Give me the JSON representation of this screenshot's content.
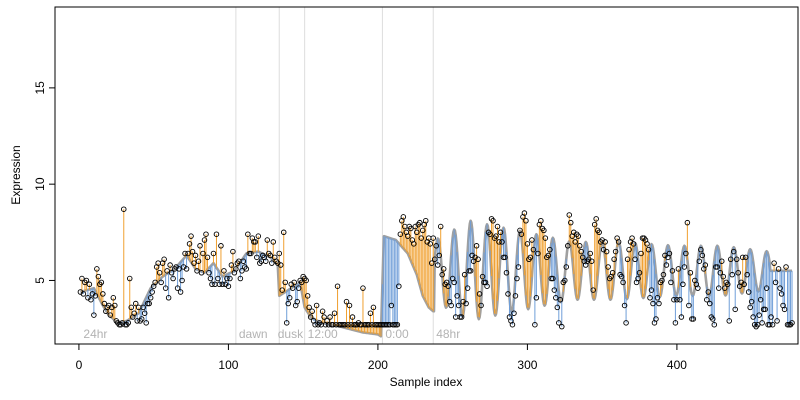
{
  "chart_data": {
    "type": "scatter",
    "title": "",
    "xlabel": "Sample index",
    "ylabel": "Expression",
    "xlim": [
      -16,
      481
    ],
    "ylim": [
      1.7,
      19.2
    ],
    "x_ticks": [
      0,
      100,
      200,
      300,
      400
    ],
    "y_ticks": [
      5,
      10,
      15
    ],
    "grid": false,
    "legend": "none",
    "region_boundaries": [
      105,
      134,
      151,
      203,
      237
    ],
    "region_labels": [
      {
        "text": "24hr",
        "x": 3
      },
      {
        "text": "dawn",
        "x": 107
      },
      {
        "text": "dusk",
        "x": 133
      },
      {
        "text": "12:00",
        "x": 153
      },
      {
        "text": "0:00",
        "x": 205
      },
      {
        "text": "48hr",
        "x": 239
      }
    ],
    "colors": {
      "fitted": "#a0a0a0",
      "residual_above": "#f0a030",
      "residual_below": "#6f9ed8",
      "points": "#000000",
      "boundary": "#dddddd",
      "region_label": "#b3b3b3"
    },
    "series": [
      {
        "x_start": 1,
        "fitted_anchors": [
          [
            1,
            4.4
          ],
          [
            10,
            4.6
          ],
          [
            16,
            3.7
          ],
          [
            20,
            3.2
          ],
          [
            26,
            2.8
          ],
          [
            32,
            2.9
          ],
          [
            40,
            3.3
          ],
          [
            48,
            4.6
          ],
          [
            56,
            5.2
          ],
          [
            64,
            5.6
          ],
          [
            72,
            6.3
          ],
          [
            78,
            5.6
          ],
          [
            84,
            5.4
          ],
          [
            90,
            5.9
          ],
          [
            96,
            5.2
          ],
          [
            104,
            5.5
          ],
          [
            112,
            6.4
          ],
          [
            120,
            6.5
          ],
          [
            128,
            6.2
          ],
          [
            133,
            5.8
          ],
          [
            134,
            4.2
          ],
          [
            142,
            4.6
          ],
          [
            148,
            4.9
          ],
          [
            151,
            3.6
          ],
          [
            155,
            3.1
          ],
          [
            162,
            2.8
          ],
          [
            175,
            2.6
          ],
          [
            190,
            2.3
          ],
          [
            200,
            2.2
          ],
          [
            202,
            2.1
          ],
          [
            203,
            4.8
          ],
          [
            204,
            7.3
          ],
          [
            212,
            7.1
          ],
          [
            220,
            6.4
          ],
          [
            226,
            5.3
          ],
          [
            230,
            4.2
          ],
          [
            234,
            3.6
          ],
          [
            237,
            3.4
          ]
        ],
        "osc": {
          "x0": 238,
          "x1": 462,
          "mean": 5.5,
          "amp_anchors": [
            [
              238,
              1.6
            ],
            [
              262,
              2.6
            ],
            [
              280,
              2.3
            ],
            [
              300,
              2.0
            ],
            [
              330,
              1.5
            ],
            [
              360,
              1.5
            ],
            [
              400,
              1.3
            ],
            [
              430,
              1.3
            ],
            [
              462,
              1.0
            ]
          ],
          "period": 11,
          "phase": 0.4
        },
        "points": [
          4.4,
          5.1,
          4.3,
          4.9,
          5.0,
          4.1,
          4.8,
          4.0,
          4.3,
          3.2,
          4.2,
          5.6,
          5.2,
          4.8,
          4.9,
          4.3,
          3.8,
          3.4,
          3.6,
          3.7,
          3.2,
          3.6,
          4.1,
          3.7,
          2.9,
          2.8,
          2.7,
          2.7,
          2.8,
          8.7,
          2.7,
          2.7,
          2.8,
          5.1,
          3.6,
          3.1,
          3.3,
          3.8,
          2.9,
          3.6,
          2.9,
          3.0,
          3.6,
          3.3,
          2.8,
          3.8,
          3.8,
          4.1,
          4.4,
          4.7,
          4.9,
          5.7,
          5.9,
          5.4,
          4.9,
          5.9,
          6.1,
          4.6,
          5.5,
          4.1,
          5.8,
          5.4,
          5.1,
          5.6,
          5.7,
          4.6,
          5.6,
          4.4,
          5.0,
          5.7,
          6.4,
          5.6,
          6.4,
          6.9,
          7.3,
          6.5,
          5.9,
          6.3,
          5.5,
          6.0,
          6.8,
          5.4,
          6.4,
          7.1,
          7.4,
          6.2,
          5.4,
          5.1,
          4.8,
          6.4,
          4.8,
          7.4,
          5.1,
          4.8,
          6.8,
          4.8,
          5.5,
          4.8,
          5.1,
          4.7,
          5.1,
          5.8,
          6.5,
          5.4,
          5.6,
          5.9,
          6.0,
          5.1,
          5.5,
          6.0,
          5.7,
          5.6,
          7.4,
          6.4,
          6.4,
          7.2,
          7.0,
          7.0,
          6.2,
          7.3,
          5.9,
          6.0,
          6.3,
          6.2,
          6.0,
          7.1,
          6.4,
          6.3,
          5.9,
          7.0,
          6.2,
          6.0,
          5.9,
          6.4,
          5.8,
          4.5,
          7.5,
          4.9,
          2.8,
          3.8,
          4.1,
          4.8,
          4.6,
          4.9,
          3.7,
          3.9,
          4.6,
          5.0,
          4.9,
          5.2,
          5.1,
          5.0,
          4.2,
          3.6,
          3.1,
          3.4,
          2.9,
          2.7,
          3.7,
          2.7,
          2.8,
          2.7,
          3.4,
          3.1,
          2.7,
          2.9,
          2.7,
          3.1,
          2.7,
          2.7,
          3.3,
          2.7,
          4.7,
          2.7,
          2.7,
          2.7,
          2.7,
          2.7,
          3.9,
          2.7,
          3.7,
          2.7,
          3.1,
          2.7,
          2.7,
          2.7,
          2.8,
          2.7,
          2.7,
          4.6,
          2.7,
          2.7,
          2.7,
          2.7,
          3.3,
          2.7,
          3.6,
          2.7,
          2.7,
          2.7,
          2.7,
          2.7,
          2.7,
          2.7,
          2.7,
          2.7,
          2.7,
          2.7,
          3.7,
          2.7,
          2.7,
          2.7,
          2.7,
          4.7,
          7.4,
          8.1,
          8.3,
          7.8,
          7.5,
          7.3,
          7.8,
          7.7,
          7.1,
          6.9,
          7.8,
          7.5,
          7.9,
          8.0,
          7.2,
          7.6,
          7.9,
          8.1,
          7.0,
          7.2,
          6.9,
          5.9,
          7.2,
          6.1,
          6.8,
          5.8,
          6.3,
          7.8,
          5.3,
          5.6,
          4.8,
          4.9,
          4.7,
          3.9,
          3.7,
          5.1,
          4.9,
          3.1,
          4.2,
          3.7,
          3.1,
          3.1,
          3.9,
          5.3,
          3.8,
          4.6,
          5.5,
          5.5,
          6.3,
          6.0,
          6.2,
          6.8,
          6.1,
          4.3,
          3.7,
          5.2,
          4.9,
          4.9,
          4.7,
          7.5,
          7.4,
          8.2,
          8.1,
          7.2,
          7.3,
          7.8,
          7.0,
          7.5,
          7.0,
          6.2,
          6.2,
          5.4,
          4.3,
          3.1,
          2.9,
          2.7,
          3.3,
          4.2,
          5.1,
          5.7,
          7.6,
          7.4,
          8.3,
          8.5,
          8.1,
          6.9,
          6.1,
          6.2,
          7.1,
          6.6,
          2.7,
          4.1,
          6.4,
          7.9,
          8.1,
          7.7,
          7.6,
          7.2,
          6.2,
          6.3,
          6.6,
          5.1,
          5.1,
          4.5,
          4.1,
          3.6,
          2.8,
          4.0,
          2.6,
          4.9,
          5.0,
          5.7,
          6.8,
          8.4,
          8.0,
          7.3,
          7.5,
          7.0,
          7.4,
          7.3,
          6.8,
          6.5,
          6.2,
          6.0,
          5.8,
          6.0,
          6.1,
          6.4,
          6.0,
          4.5,
          7.9,
          8.2,
          7.6,
          7.5,
          7.0,
          7.1,
          6.6,
          7.0,
          6.5,
          5.7,
          5.1,
          5.2,
          5.4,
          6.1,
          6.5,
          7.2,
          7.0,
          5.3,
          5.2,
          4.9,
          3.7,
          2.8,
          6.1,
          6.6,
          7.0,
          7.2,
          6.9,
          6.1,
          4.9,
          5.1,
          5.4,
          6.4,
          7.2,
          7.2,
          7.1,
          6.9,
          6.6,
          4.1,
          4.5,
          3.8,
          2.8,
          3.0,
          4.1,
          3.8,
          4.9,
          5.0,
          5.3,
          6.3,
          5.8,
          6.2,
          6.4,
          4.9,
          5.5,
          4.0,
          2.8,
          4.0,
          5.6,
          4.0,
          3.1,
          4.8,
          5.7,
          6.4,
          8.0,
          3.7,
          5.4,
          3.0,
          3.0,
          5.0,
          4.8,
          4.6,
          6.0,
          6.6,
          6.3,
          5.6,
          5.8,
          4.0,
          4.4,
          3.8,
          3.1,
          3.0,
          2.7,
          5.7,
          5.7,
          4.6,
          5.4,
          6.0,
          5.2,
          4.6,
          4.9,
          4.8,
          2.9,
          6.1,
          5.3,
          6.5,
          3.5,
          6.1,
          5.4,
          4.7,
          4.9,
          6.2,
          4.8,
          6.2,
          5.3,
          4.4,
          3.6,
          3.9,
          3.1,
          2.7,
          2.6,
          2.7,
          3.2,
          4.0,
          2.8,
          3.5,
          3.5,
          4.6,
          2.7,
          2.7,
          3.1,
          2.7,
          5.9,
          4.9,
          2.9,
          5.6,
          4.6,
          4.3,
          3.7,
          3.5,
          5.7,
          2.7,
          2.7,
          2.7,
          2.8
        ]
      }
    ]
  }
}
